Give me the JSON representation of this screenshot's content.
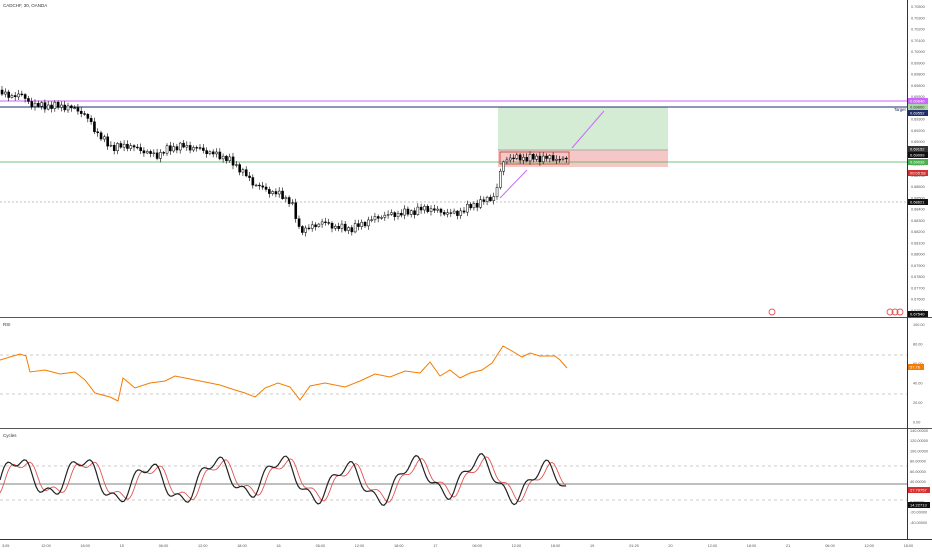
{
  "symbol_title": "CADCHF, 30, OANDA",
  "colors": {
    "candle": "#000000",
    "hline_purple": "#cc66ff",
    "hline_navy": "#1f2d6b",
    "hline_green": "#4caf50",
    "target_zone": "#d3ecd3",
    "stop_zone": "#f6c7c7",
    "rsi_line": "#f57c00",
    "cycles_main": "#222222",
    "cycles_signal": "#e05555",
    "dashed": "#bbbbbb"
  },
  "price_axis": {
    "ticks": [
      "0.70500",
      "0.70300",
      "0.70200",
      "0.70100",
      "0.70000",
      "0.69900",
      "0.69800",
      "0.69600",
      "0.69500",
      "0.69400",
      "0.69300",
      "0.69200",
      "0.69000",
      "0.68900",
      "0.68800",
      "0.68700",
      "0.68600",
      "0.68500",
      "0.68400",
      "0.68300",
      "0.68200",
      "0.68100",
      "0.68000",
      "0.67900",
      "0.67800",
      "0.67700",
      "0.67600",
      "0.67500"
    ],
    "labels": {
      "purple_level": "0.69640",
      "target_level": "0.69600",
      "target_sub": "0.69552",
      "entry_upper": "0.69152",
      "entry_mid": "0.69099",
      "current": "0.69036",
      "countdown": "00:05:58",
      "dotted_level": "0.68621",
      "bottom_level": "0.67540"
    },
    "target_tag": "Target"
  },
  "rsi": {
    "title": "RSI",
    "ticks": [
      "100.00",
      "80.00",
      "60.00",
      "40.00",
      "20.00",
      "0.00"
    ],
    "current_label": "57.76"
  },
  "cycles": {
    "title": "Cycles",
    "ticks": [
      "140.00000",
      "120.00000",
      "100.00000",
      "80.00000",
      "60.00000",
      "40.00000",
      "20.00000",
      "0.00000",
      "-20.00000",
      "-40.00000"
    ],
    "signal_label": "27.79757",
    "main_label": "14.22713"
  },
  "time_axis": [
    "3:05",
    "12:00",
    "18:00",
    "15",
    "06:00",
    "12:00",
    "18:00",
    "16",
    "06:00",
    "12:00",
    "18:00",
    "17",
    "06:00",
    "12:00",
    "18:00",
    "19",
    "01:25",
    "20",
    "12:00",
    "18:00",
    "21",
    "06:00",
    "12:00",
    "18:00"
  ],
  "chart_data": {
    "type": "candlestick",
    "series": [
      {
        "name": "CADCHF, 30, OANDA",
        "type": "candlestick"
      },
      {
        "name": "RSI",
        "type": "line",
        "current": 57.76
      },
      {
        "name": "Cycles",
        "type": "line",
        "current": 14.22713
      }
    ],
    "levels": [
      0.6964,
      0.696,
      0.69152,
      0.69036,
      0.68621
    ],
    "ylim": [
      0.675,
      0.706
    ]
  }
}
